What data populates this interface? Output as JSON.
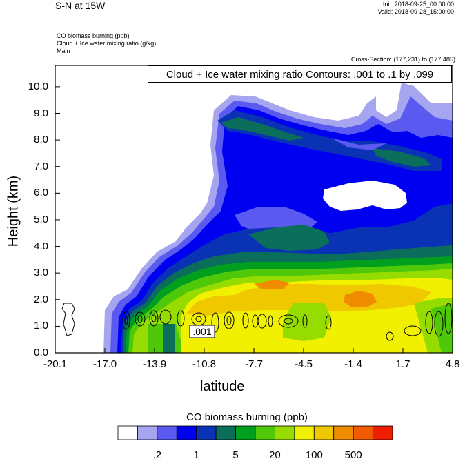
{
  "header": {
    "title": "S-N at 15W",
    "init": "Init: 2018-09-25_00:00:00",
    "valid": "Valid: 2018-09-28_15:00:00",
    "fields": [
      "CO biomass burning   (ppb)",
      "Cloud + Ice water mixing ratio   (g/kg)",
      "Main"
    ],
    "cross_section": "Cross-Section: (177,231) to (177,485)",
    "contour_info": "Cloud + Ice water mixing ratio Contours: .001 to .1 by .099"
  },
  "chart_data": {
    "type": "heatmap",
    "xlabel": "latitude",
    "ylabel": "Height (km)",
    "x_ticks": [
      "-20.1",
      "-17.0",
      "-13.9",
      "-10.8",
      "-7.7",
      "-4.5",
      "-1.4",
      "1.7",
      "4.8"
    ],
    "y_ticks": [
      "0.0",
      "1.0",
      "2.0",
      "3.0",
      "4.0",
      "5.0",
      "6.0",
      "7.0",
      "8.0",
      "9.0",
      "10.0"
    ],
    "ylim": [
      0,
      10.8
    ],
    "contour_label": ".001",
    "colorbar": {
      "title": "CO biomass burning  (ppb)",
      "colors": [
        "#ffffff",
        "#a5a5f0",
        "#5a5af0",
        "#0000f0",
        "#0a32b4",
        "#0a6e5a",
        "#00a01e",
        "#50c80a",
        "#96dc00",
        "#f0f000",
        "#f0c800",
        "#f08c00",
        "#f05a00",
        "#f01e00"
      ],
      "labels": [
        ".2",
        "1",
        "5",
        "20",
        "100",
        "500"
      ]
    }
  }
}
